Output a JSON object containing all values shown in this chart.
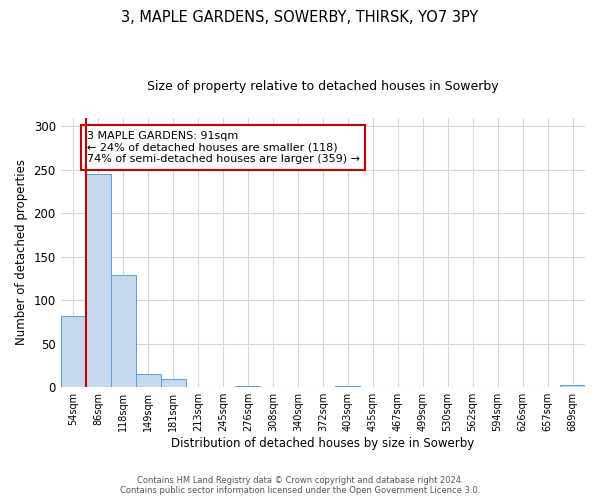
{
  "title": "3, MAPLE GARDENS, SOWERBY, THIRSK, YO7 3PY",
  "subtitle": "Size of property relative to detached houses in Sowerby",
  "xlabel": "Distribution of detached houses by size in Sowerby",
  "ylabel": "Number of detached properties",
  "bin_labels": [
    "54sqm",
    "86sqm",
    "118sqm",
    "149sqm",
    "181sqm",
    "213sqm",
    "245sqm",
    "276sqm",
    "308sqm",
    "340sqm",
    "372sqm",
    "403sqm",
    "435sqm",
    "467sqm",
    "499sqm",
    "530sqm",
    "562sqm",
    "594sqm",
    "626sqm",
    "657sqm",
    "689sqm"
  ],
  "bar_values": [
    82,
    245,
    129,
    15,
    9,
    0,
    0,
    1,
    0,
    0,
    0,
    1,
    0,
    0,
    0,
    0,
    0,
    0,
    0,
    0,
    2
  ],
  "bar_color": "#c5d8ed",
  "bar_edge_color": "#5a9fd4",
  "ylim": [
    0,
    310
  ],
  "yticks": [
    0,
    50,
    100,
    150,
    200,
    250,
    300
  ],
  "vline_color": "#cc0000",
  "annotation_text": "3 MAPLE GARDENS: 91sqm\n← 24% of detached houses are smaller (118)\n74% of semi-detached houses are larger (359) →",
  "annotation_box_color": "#cc0000",
  "footer_line1": "Contains HM Land Registry data © Crown copyright and database right 2024.",
  "footer_line2": "Contains public sector information licensed under the Open Government Licence 3.0.",
  "bg_color": "#ffffff",
  "grid_color": "#d0d8e8"
}
